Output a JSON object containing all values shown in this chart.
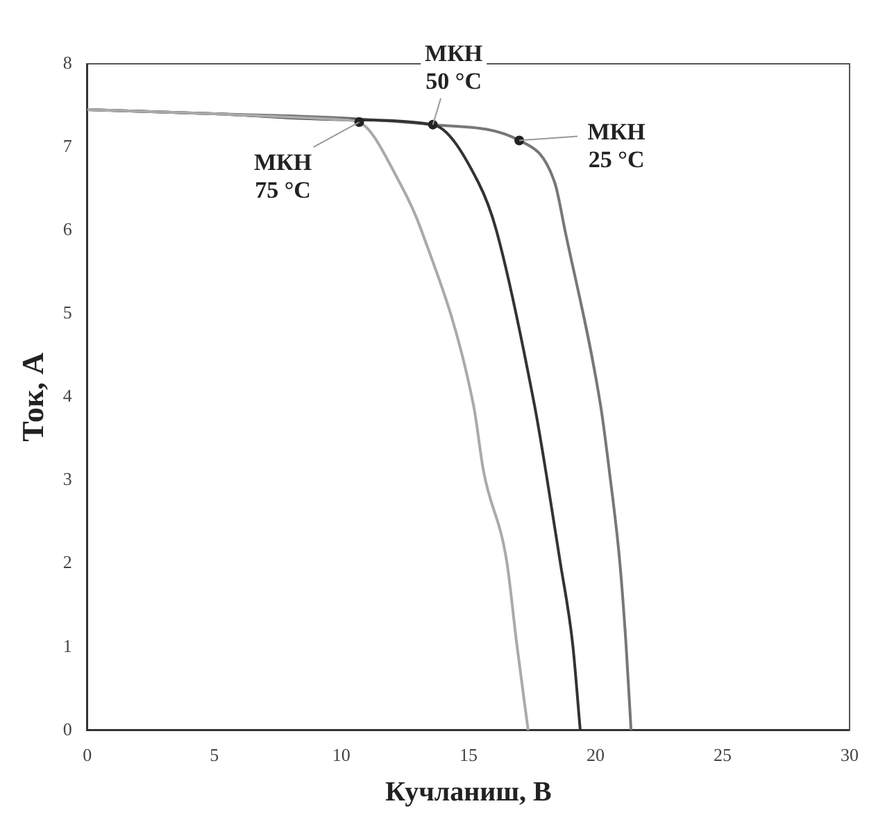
{
  "chart_data": {
    "type": "line",
    "xlabel": "Кучланиш, В",
    "ylabel": "Ток, А",
    "xlim": [
      0,
      30
    ],
    "xticks": [
      0,
      5,
      10,
      15,
      20,
      25,
      30
    ],
    "ylim": [
      0,
      8
    ],
    "yticks": [
      0,
      1,
      2,
      3,
      4,
      5,
      6,
      7,
      8
    ],
    "grid": false,
    "legend": false,
    "marker": "none",
    "line_style": "solid",
    "series": [
      {
        "color": "#aaaaaa",
        "x": [
          0,
          5,
          10,
          10.7,
          12.3,
          13.15,
          15.2,
          15.6,
          16.5,
          16.9,
          17.35
        ],
        "values": [
          7.45,
          7.4,
          7.33,
          7.3,
          6.57,
          6.0,
          3.9,
          3.1,
          2.04,
          1.04,
          0
        ]
      },
      {
        "color": "#333333",
        "x": [
          0,
          5,
          10,
          13.6,
          15.4,
          16.1,
          17.6,
          18.05,
          18.6,
          19.1,
          19.4
        ],
        "values": [
          7.45,
          7.4,
          7.33,
          7.27,
          6.57,
          6.0,
          3.9,
          3.1,
          2.04,
          1.04,
          0
        ]
      },
      {
        "color": "#777777",
        "x": [
          0,
          5,
          10,
          13.6,
          17.0,
          18.4,
          18.8,
          20.2,
          20.55,
          20.95,
          21.2,
          21.4
        ],
        "values": [
          7.45,
          7.4,
          7.35,
          7.27,
          7.08,
          6.57,
          6.0,
          3.9,
          3.1,
          2.04,
          1.04,
          0
        ]
      }
    ],
    "annotations": [
      {
        "text": "МКН\n75 °C",
        "x": 10.7,
        "y": 7.3
      },
      {
        "text": "МКН\n50 °C",
        "x": 13.6,
        "y": 7.27
      },
      {
        "text": "МКН\n25 °C",
        "x": 17.0,
        "y": 7.08
      }
    ]
  }
}
